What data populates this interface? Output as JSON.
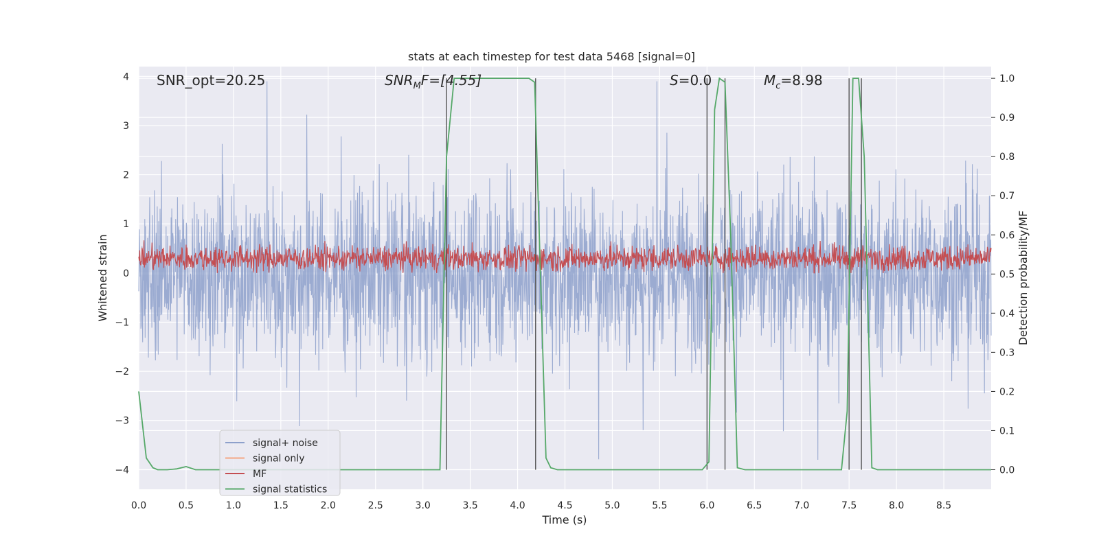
{
  "chart_data": {
    "type": "line",
    "title": "stats at each timestep for test data 5468 [signal=0]",
    "xlabel": "Time (s)",
    "ylabel": "Whitened strain",
    "y2label": "Detection probability/MF",
    "xlim": [
      0.0,
      9.0
    ],
    "ylim": [
      -4.4,
      4.2
    ],
    "y2lim": [
      -0.05,
      1.03
    ],
    "xticks": [
      "0.0",
      "0.5",
      "1.0",
      "1.5",
      "2.0",
      "2.5",
      "3.0",
      "3.5",
      "4.0",
      "4.5",
      "5.0",
      "5.5",
      "6.0",
      "6.5",
      "7.0",
      "7.5",
      "8.0",
      "8.5"
    ],
    "yticks": [
      "−4",
      "−3",
      "−2",
      "−1",
      "0",
      "1",
      "2",
      "3",
      "4"
    ],
    "y2ticks": [
      "0.0",
      "0.1",
      "0.2",
      "0.3",
      "0.4",
      "0.5",
      "0.6",
      "0.7",
      "0.8",
      "0.9",
      "1.0"
    ],
    "grid": true,
    "legend_position": "lower-left",
    "annotations": {
      "snr_opt": "SNR_opt=20.25",
      "snr_mf_prefix": "SNR",
      "snr_mf_sub": "M",
      "snr_mf_suffix": "F=[4.55]",
      "s_label": "S",
      "s_value": "=0.0",
      "mc_label": "M",
      "mc_sub": "c",
      "mc_value": "=8.98"
    },
    "series": [
      {
        "name": "signal+ noise",
        "color": "#8da0cb",
        "kind": "noise",
        "amplitude_range": [
          -3.8,
          3.9
        ]
      },
      {
        "name": "signal only",
        "color": "#f4a582",
        "kind": "flat",
        "values": []
      },
      {
        "name": "MF",
        "color": "#c44e52",
        "kind": "mf",
        "range": [
          0.0,
          0.85
        ]
      },
      {
        "name": "signal statistics",
        "color": "#55a868",
        "axis": "right",
        "x": [
          0.0,
          0.08,
          0.15,
          0.2,
          0.3,
          0.4,
          0.5,
          0.6,
          0.8,
          1.0,
          1.5,
          2.0,
          2.5,
          3.0,
          3.18,
          3.25,
          3.33,
          3.5,
          4.0,
          4.12,
          4.18,
          4.3,
          4.35,
          4.42,
          5.0,
          5.5,
          5.95,
          6.02,
          6.08,
          6.13,
          6.19,
          6.25,
          6.32,
          6.4,
          7.0,
          7.42,
          7.48,
          7.54,
          7.6,
          7.66,
          7.74,
          7.8,
          8.0,
          8.5,
          9.0
        ],
        "values": [
          0.2,
          0.03,
          0.005,
          0.0,
          0.0,
          0.002,
          0.008,
          0.0,
          0.0,
          0.0,
          0.0,
          0.0,
          0.0,
          0.0,
          0.0,
          0.8,
          1.0,
          1.0,
          1.0,
          1.0,
          0.99,
          0.03,
          0.005,
          0.0,
          0.0,
          0.0,
          0.0,
          0.02,
          0.92,
          1.0,
          0.99,
          0.6,
          0.005,
          0.0,
          0.0,
          0.0,
          0.15,
          1.0,
          1.0,
          0.8,
          0.005,
          0.0,
          0.0,
          0.0,
          0.0
        ]
      }
    ],
    "vertical_lines_x": [
      3.25,
      4.19,
      6.0,
      6.19,
      7.5,
      7.63
    ]
  }
}
